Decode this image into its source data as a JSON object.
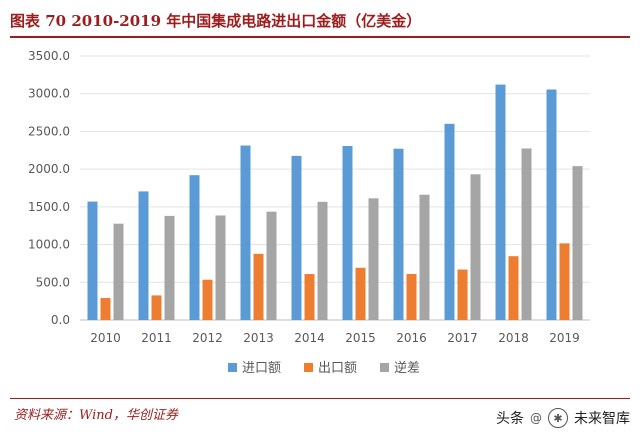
{
  "header": {
    "title": "图表 70 2010-2019 年中国集成电路进出口金额（亿美金）"
  },
  "footer": {
    "source": "资料来源：Wind，华创证券",
    "watermark_primary": "头条",
    "watermark_secondary": "未来智库"
  },
  "colors": {
    "import": "#5B9BD5",
    "export": "#ED7D31",
    "deficit": "#A5A5A5",
    "accent": "#9b1d1d"
  },
  "chart_data": {
    "type": "bar",
    "title": "图表 70 2010-2019 年中国集成电路进出口金额（亿美金）",
    "categories": [
      "2010",
      "2011",
      "2012",
      "2013",
      "2014",
      "2015",
      "2016",
      "2017",
      "2018",
      "2019"
    ],
    "series": [
      {
        "name": "进口额",
        "values": [
          1570,
          1705,
          1920,
          2313,
          2176,
          2307,
          2271,
          2601,
          3121,
          3056
        ]
      },
      {
        "name": "出口额",
        "values": [
          292,
          326,
          534,
          877,
          609,
          693,
          610,
          669,
          846,
          1016
        ]
      },
      {
        "name": "逆差",
        "values": [
          1277,
          1380,
          1386,
          1436,
          1567,
          1613,
          1661,
          1932,
          2274,
          2040
        ]
      }
    ],
    "ylim": [
      0,
      3500
    ],
    "yticks": [
      "0.0",
      "500.0",
      "1000.0",
      "1500.0",
      "2000.0",
      "2500.0",
      "3000.0",
      "3500.0"
    ],
    "grid": true,
    "legend": "bottom-center"
  }
}
